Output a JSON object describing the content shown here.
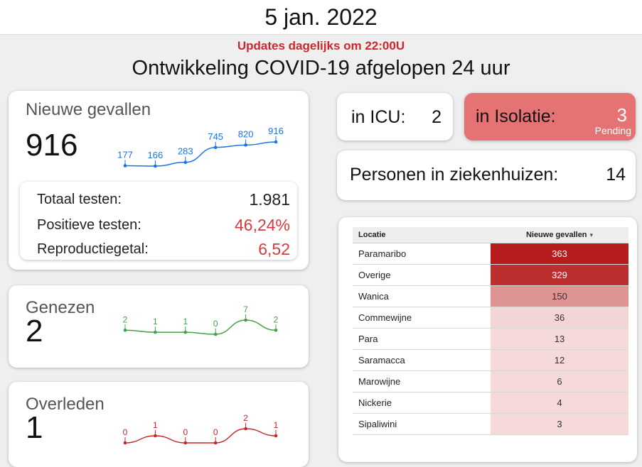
{
  "header": {
    "date": "5 jan. 2022"
  },
  "updates": "Updates dagelijks om 22:00U",
  "subtitle": "Ontwikkeling COVID-19 afgelopen 24 uur",
  "nieuwe": {
    "label": "Nieuwe gevallen",
    "value": "916",
    "trend": [
      177,
      166,
      283,
      745,
      820,
      916
    ],
    "color": "#1a73e8"
  },
  "tests": {
    "totaal_label": "Totaal testen:",
    "totaal_value": "1.981",
    "positief_label": "Positieve testen:",
    "positief_value": "46,24%",
    "reproductie_label": "Reproductiegetal:",
    "reproductie_value": "6,52"
  },
  "genezen": {
    "label": "Genezen",
    "value": "2",
    "trend": [
      2,
      1,
      1,
      0,
      7,
      2
    ],
    "color": "#43a047"
  },
  "overleden": {
    "label": "Overleden",
    "value": "1",
    "trend": [
      0,
      1,
      0,
      0,
      2,
      1
    ],
    "color": "#c62828"
  },
  "icu": {
    "label": "in ICU:",
    "value": "2"
  },
  "isolatie": {
    "label": "in Isolatie:",
    "value": "3",
    "status": "Pending",
    "color": "#e57373"
  },
  "ziekenhuis": {
    "label": "Personen in ziekenhuizen:",
    "value": "14"
  },
  "locatie_table": {
    "col_locatie": "Locatie",
    "col_nieuwe": "Nieuwe gevallen",
    "rows": [
      {
        "name": "Paramaribo",
        "value": "363"
      },
      {
        "name": "Overige",
        "value": "329"
      },
      {
        "name": "Wanica",
        "value": "150"
      },
      {
        "name": "Commewijne",
        "value": "36"
      },
      {
        "name": "Para",
        "value": "13"
      },
      {
        "name": "Saramacca",
        "value": "12"
      },
      {
        "name": "Marowijne",
        "value": "6"
      },
      {
        "name": "Nickerie",
        "value": "4"
      },
      {
        "name": "Sipaliwini",
        "value": "3"
      }
    ]
  }
}
